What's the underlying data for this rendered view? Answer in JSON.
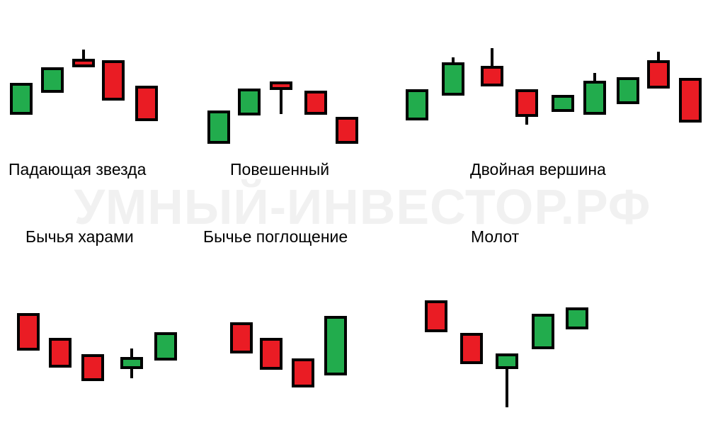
{
  "watermark": "УМНЫЙ-ИНВЕСТОР.РФ",
  "colors": {
    "bull": "#22ac4d",
    "bear": "#ea1c24",
    "outline": "#000000"
  },
  "patterns": [
    {
      "label": "Падающая звезда",
      "candles": [
        {
          "dir": "bull",
          "open": 45,
          "close": 86,
          "high": 86,
          "low": 45
        },
        {
          "dir": "bull",
          "open": 76,
          "close": 108,
          "high": 108,
          "low": 76
        },
        {
          "dir": "bear",
          "open": 120,
          "close": 112,
          "high": 135,
          "low": 112
        },
        {
          "dir": "bear",
          "open": 118,
          "close": 65,
          "high": 118,
          "low": 65
        },
        {
          "dir": "bear",
          "open": 82,
          "close": 36,
          "high": 82,
          "low": 36
        }
      ]
    },
    {
      "label": "Повешенный",
      "candles": [
        {
          "dir": "bull",
          "open": 24,
          "close": 67,
          "high": 67,
          "low": 24
        },
        {
          "dir": "bull",
          "open": 64,
          "close": 98,
          "high": 98,
          "low": 64
        },
        {
          "dir": "bear",
          "open": 108,
          "close": 100,
          "high": 108,
          "low": 64
        },
        {
          "dir": "bear",
          "open": 95,
          "close": 65,
          "high": 95,
          "low": 65
        },
        {
          "dir": "bear",
          "open": 58,
          "close": 24,
          "high": 58,
          "low": 24
        }
      ]
    },
    {
      "label": "Двойная вершина",
      "candles": [
        {
          "dir": "bull",
          "open": 40,
          "close": 80,
          "high": 80,
          "low": 40
        },
        {
          "dir": "bull",
          "open": 75,
          "close": 118,
          "high": 127,
          "low": 75
        },
        {
          "dir": "bear",
          "open": 113,
          "close": 88,
          "high": 140,
          "low": 88
        },
        {
          "dir": "bear",
          "open": 80,
          "close": 45,
          "high": 80,
          "low": 32
        },
        {
          "dir": "bull",
          "open": 52,
          "close": 72,
          "high": 72,
          "low": 52
        },
        {
          "dir": "bull",
          "open": 48,
          "close": 92,
          "high": 105,
          "low": 48
        },
        {
          "dir": "bull",
          "open": 63,
          "close": 97,
          "high": 97,
          "low": 63
        },
        {
          "dir": "bear",
          "open": 121,
          "close": 85,
          "high": 135,
          "low": 85
        },
        {
          "dir": "bear",
          "open": 96,
          "close": 37,
          "high": 96,
          "low": 37
        }
      ]
    },
    {
      "label": "Бычья харами",
      "candles": [
        {
          "dir": "bear",
          "open": 133,
          "close": 84,
          "high": 133,
          "low": 84
        },
        {
          "dir": "bear",
          "open": 98,
          "close": 60,
          "high": 98,
          "low": 60
        },
        {
          "dir": "bear",
          "open": 75,
          "close": 41,
          "high": 75,
          "low": 41
        },
        {
          "dir": "bull",
          "open": 58,
          "close": 71,
          "high": 85,
          "low": 43
        },
        {
          "dir": "bull",
          "open": 70,
          "close": 106,
          "high": 106,
          "low": 70
        }
      ]
    },
    {
      "label": "Бычье поглощение",
      "candles": [
        {
          "dir": "bear",
          "open": 121,
          "close": 81,
          "high": 121,
          "low": 81
        },
        {
          "dir": "bear",
          "open": 99,
          "close": 58,
          "high": 99,
          "low": 58
        },
        {
          "dir": "bear",
          "open": 70,
          "close": 33,
          "high": 70,
          "low": 33
        },
        {
          "dir": "bull",
          "open": 50,
          "close": 130,
          "high": 130,
          "low": 50
        }
      ]
    },
    {
      "label": "Молот",
      "candles": [
        {
          "dir": "bear",
          "open": 159,
          "close": 118,
          "high": 159,
          "low": 118
        },
        {
          "dir": "bear",
          "open": 113,
          "close": 73,
          "high": 113,
          "low": 73
        },
        {
          "dir": "bull",
          "open": 66,
          "close": 84,
          "high": 84,
          "low": 10
        },
        {
          "dir": "bull",
          "open": 94,
          "close": 140,
          "high": 140,
          "low": 94
        },
        {
          "dir": "bull",
          "open": 122,
          "close": 149,
          "high": 149,
          "low": 122
        }
      ]
    }
  ]
}
